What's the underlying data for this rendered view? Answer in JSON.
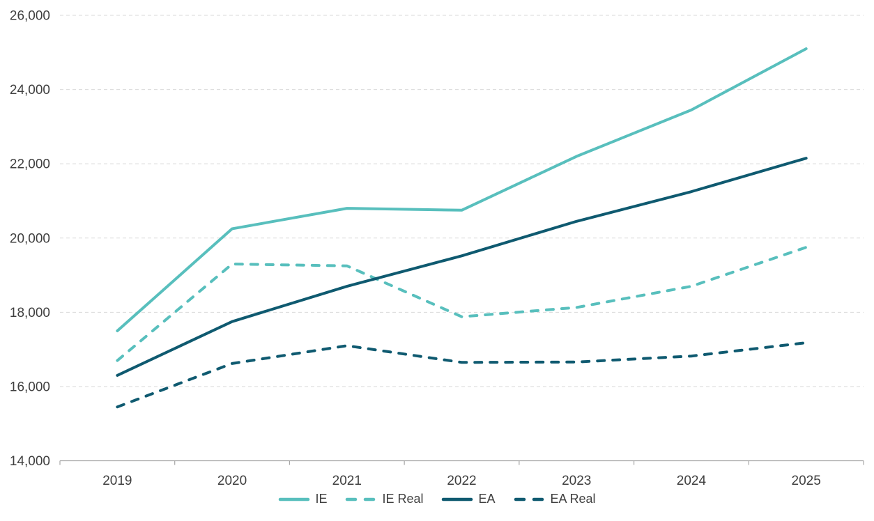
{
  "chart_data": {
    "type": "line",
    "title": "",
    "xlabel": "",
    "ylabel": "",
    "categories": [
      "2019",
      "2020",
      "2021",
      "2022",
      "2023",
      "2024",
      "2025"
    ],
    "series": [
      {
        "name": "IE",
        "color": "#58BFBD",
        "dash": "solid",
        "values": [
          17500,
          20250,
          20800,
          20750,
          22200,
          23450,
          25100
        ]
      },
      {
        "name": "IE Real",
        "color": "#58BFBD",
        "dash": "dashed",
        "values": [
          16700,
          19300,
          19250,
          17880,
          18130,
          18700,
          19750
        ]
      },
      {
        "name": "EA",
        "color": "#0F5A70",
        "dash": "solid",
        "values": [
          16300,
          17750,
          18700,
          19520,
          20450,
          21250,
          22150
        ]
      },
      {
        "name": "EA Real",
        "color": "#0F5A70",
        "dash": "dashed",
        "values": [
          15450,
          16620,
          17100,
          16650,
          16660,
          16820,
          17180
        ]
      }
    ],
    "ylim": [
      14000,
      26000
    ],
    "ytick_step": 2000,
    "ytick_labels": [
      "14,000",
      "16,000",
      "18,000",
      "20,000",
      "22,000",
      "24,000",
      "26,000"
    ],
    "grid": "horizontal-dashed",
    "legend_position": "bottom"
  },
  "colors": {
    "grid": "#D9D9D9",
    "axis": "#A6A6A6",
    "tick_text": "#3F3F3F",
    "legend_text": "#3F3F3F",
    "background": "#FFFFFF"
  }
}
